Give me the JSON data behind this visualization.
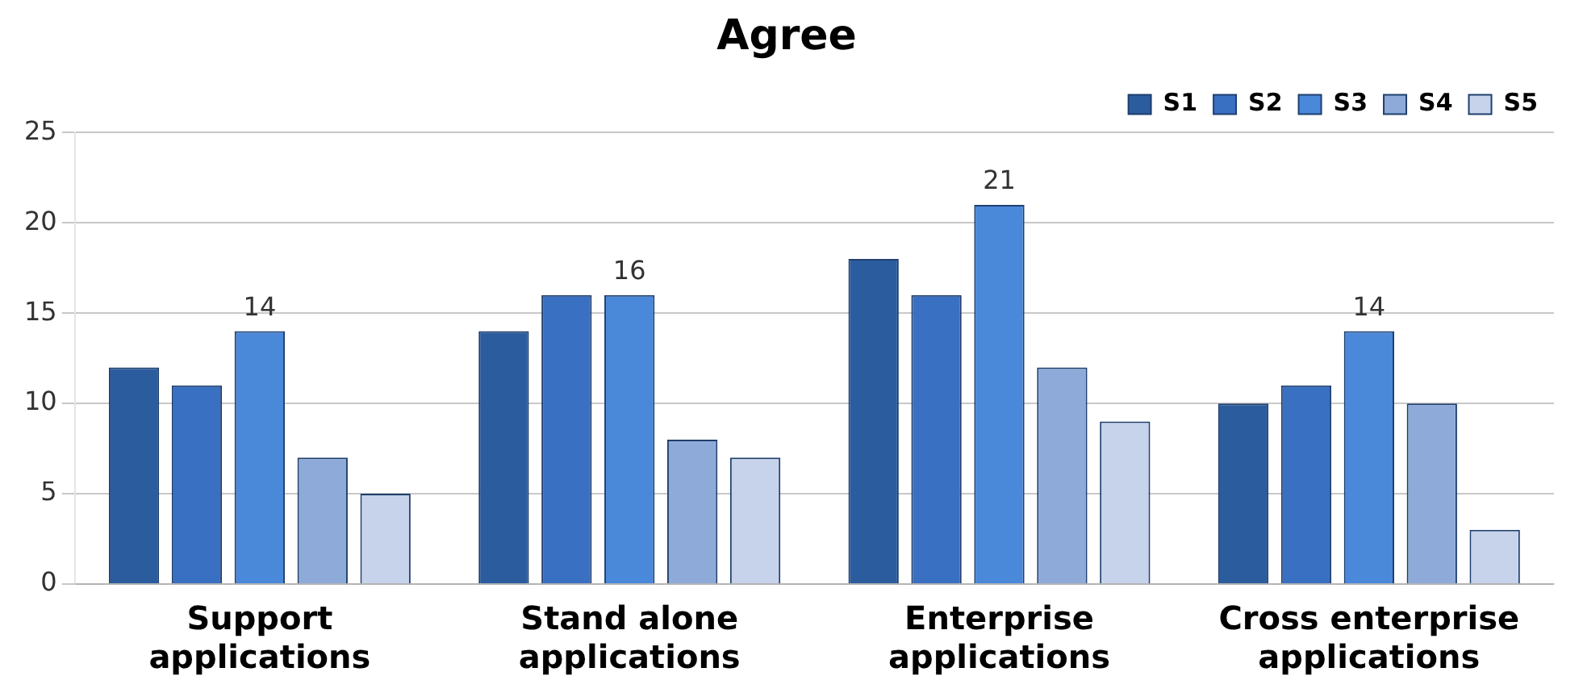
{
  "chart_data": {
    "type": "bar",
    "title": "Agree",
    "categories": [
      "Support applications",
      "Stand alone applications",
      "Enterprise applications",
      "Cross enterprise applications"
    ],
    "series": [
      {
        "name": "S1",
        "color": "#2b5c9e",
        "values": [
          12,
          14,
          18,
          10
        ]
      },
      {
        "name": "S2",
        "color": "#3a70c2",
        "values": [
          11,
          16,
          16,
          11
        ]
      },
      {
        "name": "S3",
        "color": "#4a88da",
        "values": [
          14,
          16,
          21,
          14
        ],
        "value_labels": [
          "14",
          "16",
          "21",
          "14"
        ]
      },
      {
        "name": "S4",
        "color": "#8eaad9",
        "values": [
          7,
          8,
          12,
          10
        ]
      },
      {
        "name": "S5",
        "color": "#c6d3ea",
        "values": [
          5,
          7,
          9,
          3
        ]
      }
    ],
    "ylim": [
      0,
      25
    ],
    "yticks": [
      0,
      5,
      10,
      15,
      20,
      25
    ],
    "grid": "y",
    "legend": "top right"
  }
}
